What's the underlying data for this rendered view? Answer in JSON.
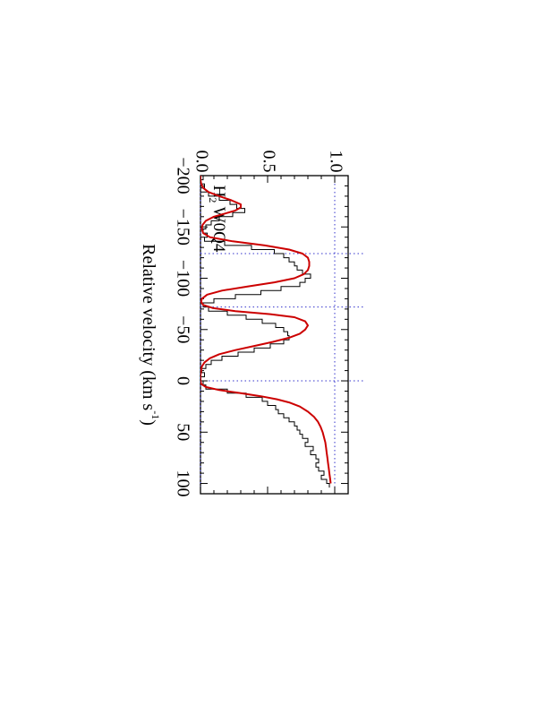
{
  "chart_data": {
    "type": "line",
    "orientation": "rotated-90-clockwise",
    "title": "",
    "xlabel": {
      "text": "Relative velocity (km s",
      "sup": "-1",
      "close": ")"
    },
    "ylabel": "",
    "xlim": [
      -200,
      110
    ],
    "ylim": [
      0.0,
      1.1
    ],
    "x_ticks": [
      {
        "value": -200,
        "label": "−200"
      },
      {
        "value": -150,
        "label": "−150"
      },
      {
        "value": -100,
        "label": "−100"
      },
      {
        "value": -50,
        "label": "−50"
      },
      {
        "value": 0,
        "label": "0"
      },
      {
        "value": 50,
        "label": "50"
      },
      {
        "value": 100,
        "label": "100"
      }
    ],
    "y_ticks": [
      {
        "value": 0.0,
        "label": "0.0"
      },
      {
        "value": 0.5,
        "label": "0.5"
      },
      {
        "value": 1.0,
        "label": "1.0"
      }
    ],
    "annotation": {
      "text_main": "H",
      "text_sub": "2",
      "text_rest": " W0Q4"
    },
    "reference_lines": {
      "horizontal": [
        0.0,
        1.0
      ],
      "vertical": [
        -124,
        -72,
        0
      ],
      "horizontal_color": "#3333cc",
      "vertical_color": "#3333cc"
    },
    "series": [
      {
        "style": "step",
        "color": "#000000",
        "x": [
          -200,
          -196,
          -192,
          -188,
          -184,
          -180,
          -176,
          -172,
          -168,
          -164,
          -160,
          -156,
          -152,
          -148,
          -144,
          -140,
          -136,
          -132,
          -128,
          -124,
          -120,
          -116,
          -112,
          -108,
          -104,
          -100,
          -96,
          -92,
          -88,
          -84,
          -80,
          -76,
          -72,
          -68,
          -64,
          -60,
          -56,
          -52,
          -48,
          -44,
          -40,
          -36,
          -32,
          -28,
          -24,
          -20,
          -16,
          -12,
          -8,
          -4,
          0,
          4,
          8,
          12,
          16,
          20,
          24,
          28,
          32,
          36,
          40,
          44,
          48,
          52,
          56,
          60,
          64,
          68,
          72,
          76,
          80,
          84,
          88,
          92,
          96,
          100
        ],
        "y": [
          0.02,
          0.0,
          0.03,
          0.0,
          0.06,
          0.14,
          0.22,
          0.27,
          0.33,
          0.24,
          0.14,
          0.08,
          0.04,
          0.02,
          0.05,
          0.03,
          0.18,
          0.38,
          0.55,
          0.62,
          0.66,
          0.7,
          0.72,
          0.76,
          0.82,
          0.78,
          0.74,
          0.6,
          0.45,
          0.26,
          0.1,
          0.02,
          0.06,
          0.2,
          0.34,
          0.46,
          0.56,
          0.62,
          0.65,
          0.66,
          0.62,
          0.52,
          0.4,
          0.28,
          0.16,
          0.08,
          0.04,
          0.01,
          0.03,
          0.0,
          0.02,
          0.04,
          0.2,
          0.34,
          0.46,
          0.5,
          0.56,
          0.58,
          0.62,
          0.66,
          0.7,
          0.72,
          0.74,
          0.76,
          0.8,
          0.78,
          0.84,
          0.82,
          0.86,
          0.88,
          0.86,
          0.88,
          0.92,
          0.9,
          0.94,
          0.96
        ]
      },
      {
        "style": "line",
        "color": "#cc0000",
        "x": [
          -200,
          -196,
          -192,
          -188,
          -184,
          -180,
          -176,
          -172,
          -169,
          -166,
          -163,
          -160,
          -156,
          -152,
          -148,
          -144,
          -140,
          -136,
          -132,
          -128,
          -124,
          -120,
          -116,
          -112,
          -108,
          -104,
          -100,
          -96,
          -92,
          -88,
          -84,
          -80,
          -77,
          -74,
          -71,
          -68,
          -65,
          -62,
          -58,
          -54,
          -50,
          -46,
          -42,
          -38,
          -34,
          -30,
          -26,
          -22,
          -18,
          -14,
          -10,
          -6,
          -3,
          0,
          3,
          6,
          9,
          12,
          15,
          18,
          21,
          25,
          30,
          35,
          40,
          45,
          50,
          55,
          60,
          65,
          70,
          75,
          80,
          85,
          90,
          95,
          100
        ],
        "y": [
          0.0,
          0.0,
          0.005,
          0.02,
          0.06,
          0.14,
          0.23,
          0.3,
          0.3,
          0.26,
          0.18,
          0.1,
          0.04,
          0.015,
          0.01,
          0.02,
          0.07,
          0.24,
          0.48,
          0.66,
          0.76,
          0.8,
          0.81,
          0.81,
          0.8,
          0.77,
          0.7,
          0.55,
          0.35,
          0.16,
          0.05,
          0.01,
          0.005,
          0.02,
          0.09,
          0.26,
          0.52,
          0.7,
          0.78,
          0.8,
          0.78,
          0.74,
          0.66,
          0.54,
          0.4,
          0.26,
          0.14,
          0.07,
          0.03,
          0.01,
          0.005,
          0.0,
          0.0,
          0.0,
          0.005,
          0.04,
          0.14,
          0.3,
          0.45,
          0.57,
          0.66,
          0.74,
          0.8,
          0.845,
          0.875,
          0.895,
          0.91,
          0.92,
          0.93,
          0.935,
          0.94,
          0.945,
          0.95,
          0.955,
          0.96,
          0.965,
          0.97
        ]
      }
    ],
    "grid": false,
    "legend": "none"
  }
}
